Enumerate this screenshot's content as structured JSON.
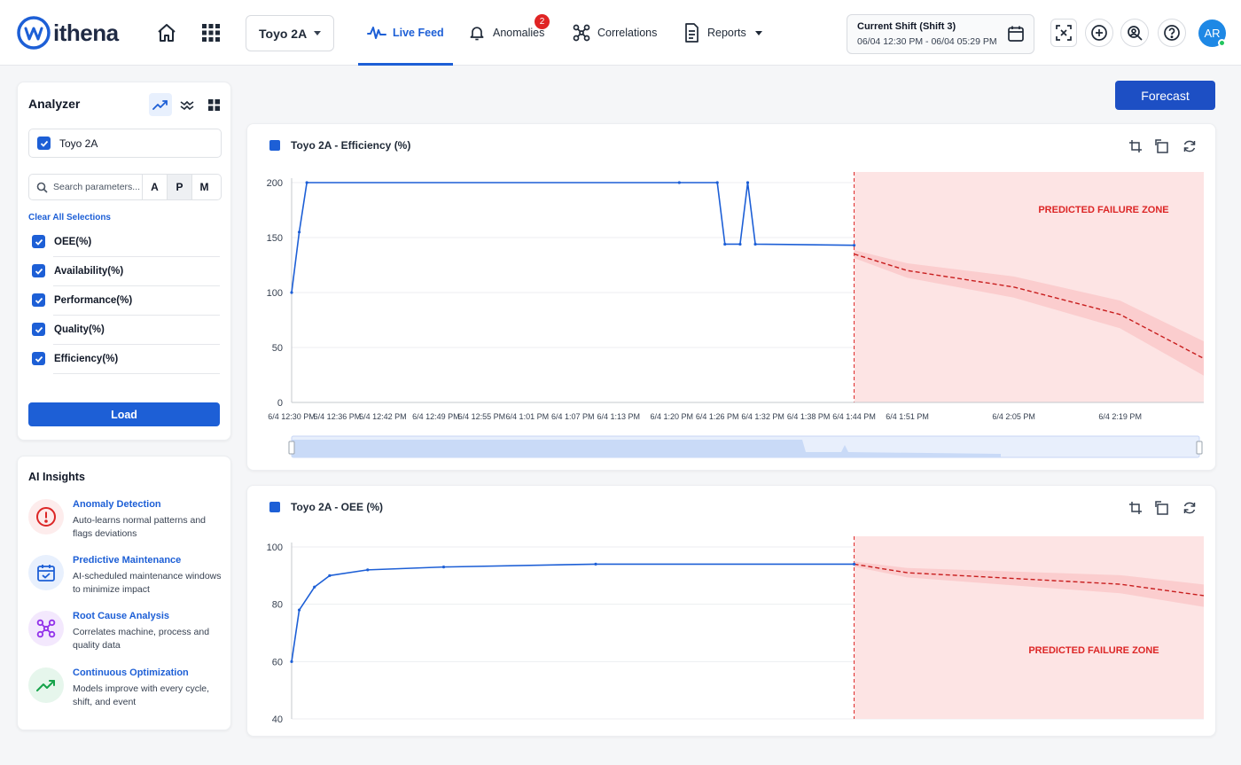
{
  "header": {
    "brand": "ithena",
    "line_selector": "Toyo 2A",
    "nav": [
      {
        "label": "Live Feed",
        "icon": "activity-icon"
      },
      {
        "label": "Anomalies",
        "icon": "bell-icon",
        "badge": "2"
      },
      {
        "label": "Correlations",
        "icon": "network-icon"
      },
      {
        "label": "Reports",
        "icon": "report-icon"
      }
    ],
    "shift": {
      "title": "Current Shift (Shift 3)",
      "range": "06/04 12:30 PM - 06/04 05:29 PM"
    },
    "avatar": "AR"
  },
  "analyzer": {
    "title": "Analyzer",
    "machine": "Toyo 2A",
    "search_placeholder": "Search parameters...",
    "modes": [
      "A",
      "P",
      "M"
    ],
    "clear": "Clear All Selections",
    "params": [
      "OEE(%)",
      "Availability(%)",
      "Performance(%)",
      "Quality(%)",
      "Efficiency(%)"
    ],
    "load": "Load"
  },
  "insights": {
    "title": "AI Insights",
    "items": [
      {
        "title": "Anomaly Detection",
        "desc": "Auto-learns normal patterns and flags deviations"
      },
      {
        "title": "Predictive Maintenance",
        "desc": "AI-scheduled maintenance windows to minimize impact"
      },
      {
        "title": "Root Cause Analysis",
        "desc": "Correlates machine, process and quality data"
      },
      {
        "title": "Continuous Optimization",
        "desc": "Models improve with every cycle, shift, and event"
      }
    ]
  },
  "forecast_label": "Forecast",
  "colors": {
    "accent": "#1d5fd6",
    "failure": "#dc2626",
    "failure_zone": "#fde4e4"
  },
  "chart_data": [
    {
      "type": "line",
      "title": "Toyo 2A - Efficiency (%)",
      "series": [
        {
          "name": "Toyo 2A",
          "x": [
            "12:30",
            "12:31",
            "12:32",
            "13:21",
            "13:26",
            "13:27",
            "13:29",
            "13:30",
            "13:31",
            "13:44"
          ],
          "values": [
            100,
            155,
            200,
            200,
            200,
            144,
            144,
            200,
            144,
            143
          ]
        }
      ],
      "forecast": {
        "x": [
          "13:44",
          "13:51",
          "14:05",
          "14:19",
          "14:30"
        ],
        "values": [
          135,
          120,
          105,
          80,
          40
        ],
        "band": "shaded"
      },
      "x_ticks": [
        "6/4 12:30 PM",
        "6/4 12:36 PM",
        "6/4 12:42 PM",
        "6/4 12:49 PM",
        "6/4 12:55 PM",
        "6/4 1:01 PM",
        "6/4 1:07 PM",
        "6/4 1:13 PM",
        "6/4 1:20 PM",
        "6/4 1:26 PM",
        "6/4 1:32 PM",
        "6/4 1:38 PM",
        "6/4 1:44 PM",
        "6/4 1:51 PM",
        "6/4 2:05 PM",
        "6/4 2:19 PM"
      ],
      "y_ticks": [
        "200",
        "150",
        "100",
        "50",
        "0"
      ],
      "ylim": [
        0,
        200
      ],
      "zone_label": "PREDICTED FAILURE ZONE"
    },
    {
      "type": "line",
      "title": "Toyo 2A - OEE (%)",
      "series": [
        {
          "name": "Toyo 2A",
          "x": [
            "12:30",
            "12:31",
            "12:33",
            "12:35",
            "12:40",
            "12:50",
            "13:10",
            "13:44"
          ],
          "values": [
            60,
            78,
            86,
            90,
            92,
            93,
            94,
            94
          ]
        }
      ],
      "forecast": {
        "x": [
          "13:44",
          "13:51",
          "14:05",
          "14:19",
          "14:30"
        ],
        "values": [
          94,
          91,
          89,
          87,
          83
        ],
        "band": "shaded"
      },
      "y_ticks": [
        "100",
        "80",
        "60",
        "40"
      ],
      "ylim": [
        40,
        100
      ],
      "zone_label": "PREDICTED FAILURE ZONE",
      "grid": true
    }
  ]
}
